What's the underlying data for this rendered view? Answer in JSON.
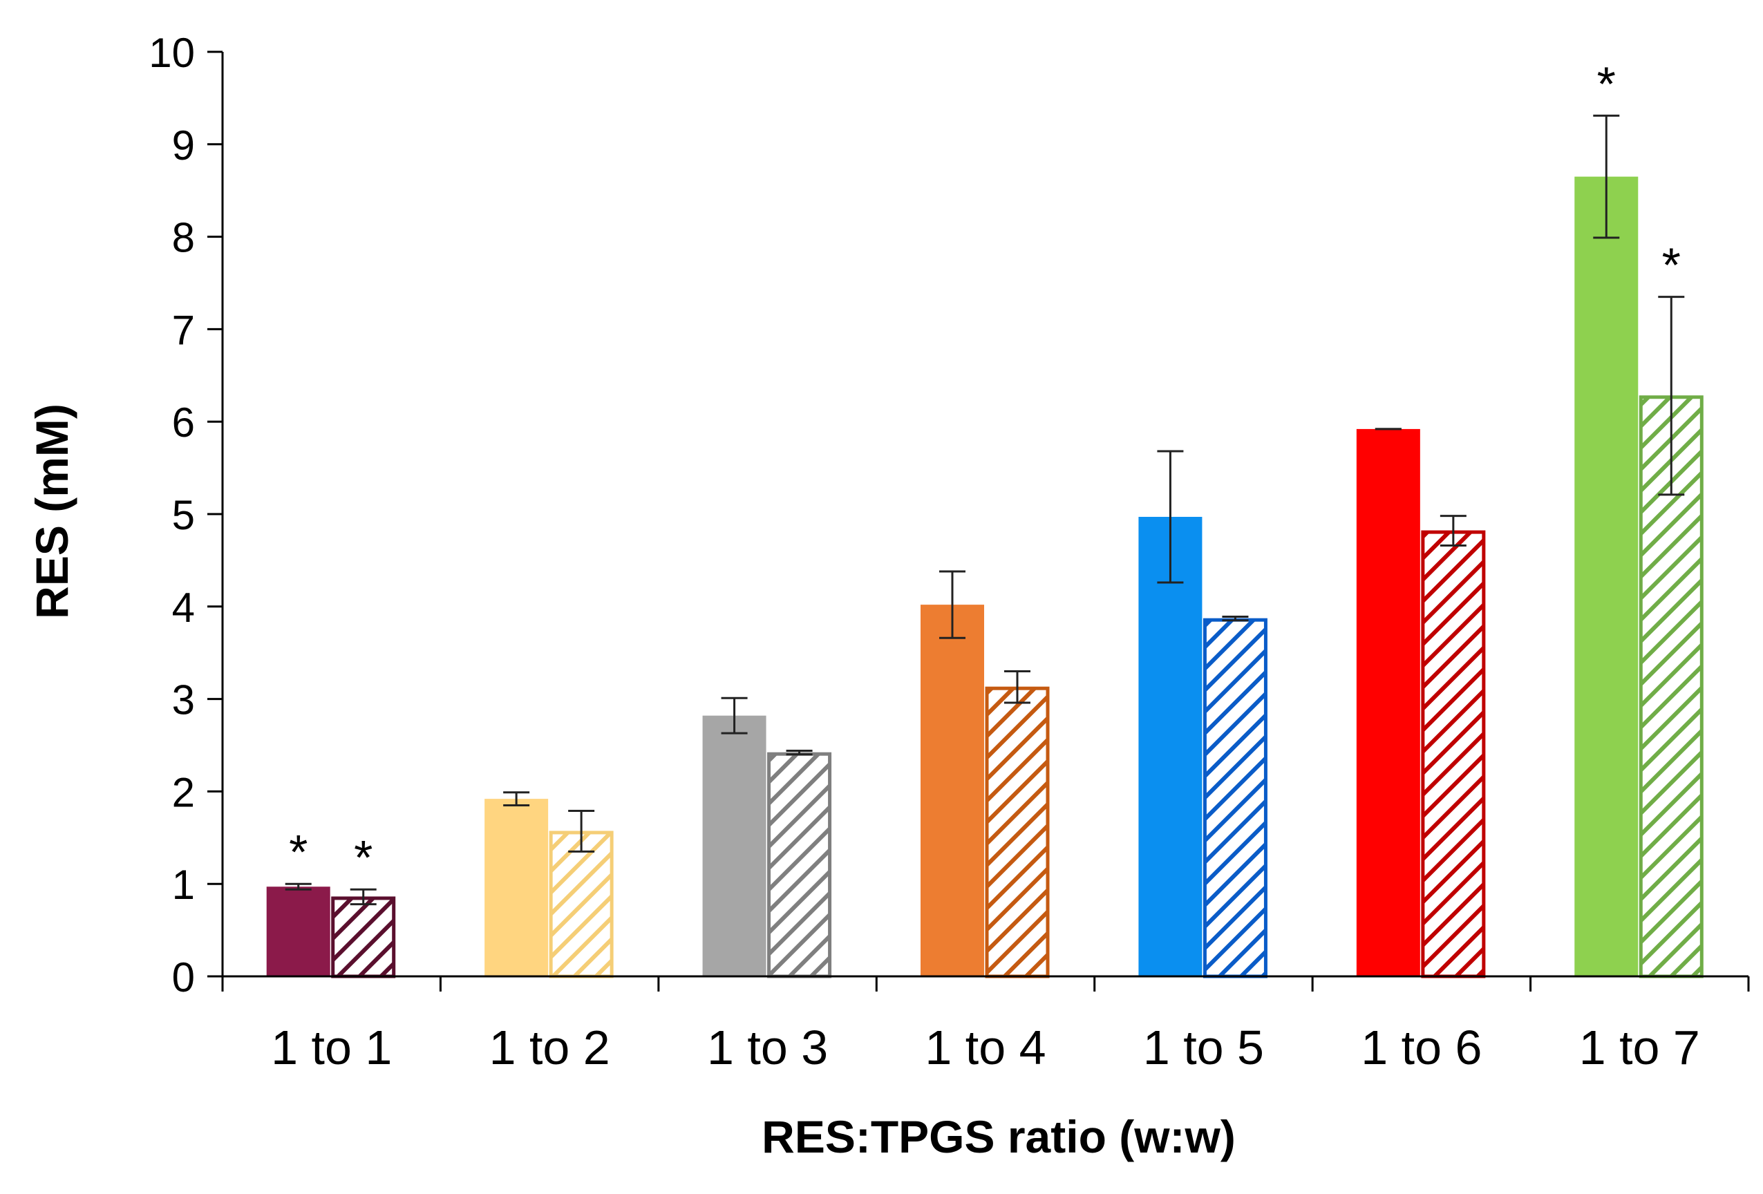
{
  "chart_data": {
    "type": "bar",
    "title": "",
    "xlabel": "RES:TPGS ratio (w:w)",
    "ylabel": "RES  (mM)",
    "ylim": [
      0,
      10
    ],
    "yticks": [
      "0",
      "1",
      "2",
      "3",
      "4",
      "5",
      "6",
      "7",
      "8",
      "9",
      "10"
    ],
    "categories": [
      "1 to 1",
      "1 to 2",
      "1 to 3",
      "1 to 4",
      "1 to 5",
      "1 to 6",
      "1 to 7"
    ],
    "colors": [
      "#8B1A4A",
      "#FFD580",
      "#A6A6A6",
      "#ED7D31",
      "#0A8FF0",
      "#FF0000",
      "#8ED14F"
    ],
    "hatch_stroke_colors": [
      "#5A0F2E",
      "#F5CE76",
      "#7F7F7F",
      "#C55A11",
      "#0A5CC8",
      "#C00000",
      "#70AD47"
    ],
    "series": [
      {
        "name": "solid",
        "pattern": "solid",
        "values": [
          0.97,
          1.92,
          2.82,
          4.02,
          4.97,
          5.92,
          8.65
        ],
        "errors": [
          0.03,
          0.07,
          0.19,
          0.36,
          0.71,
          0.0,
          0.66
        ],
        "significance": [
          "*",
          "",
          "",
          "",
          "",
          "",
          "*"
        ]
      },
      {
        "name": "hatched",
        "pattern": "hatched",
        "values": [
          0.86,
          1.57,
          2.42,
          3.13,
          3.87,
          4.82,
          6.28
        ],
        "errors": [
          0.08,
          0.22,
          0.02,
          0.17,
          0.02,
          0.16,
          1.07
        ],
        "significance": [
          "*",
          "",
          "",
          "",
          "",
          "",
          "*"
        ]
      }
    ]
  }
}
